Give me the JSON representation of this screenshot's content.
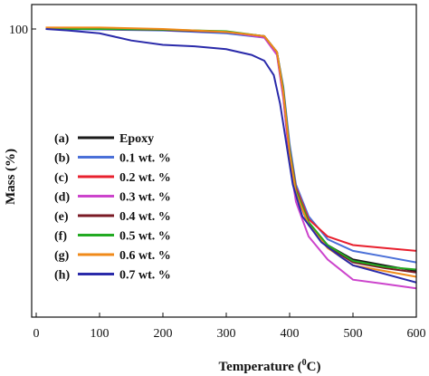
{
  "chart_data": {
    "type": "line",
    "title": "",
    "xlabel": "Temperature (",
    "xlabel_sup": "0",
    "xlabel_suffix": "C)",
    "ylabel": "Mass (%)",
    "xlim": [
      0,
      600
    ],
    "ylim": [
      0,
      105
    ],
    "x_ticks": [
      0,
      100,
      200,
      300,
      400,
      500,
      600
    ],
    "x_tick_labels": [
      "0",
      "100",
      "200",
      "300",
      "400",
      "500",
      "600"
    ],
    "y_ticks": [
      100
    ],
    "y_tick_labels": [
      "100"
    ],
    "grid": false,
    "legend_position": "center-left",
    "series": [
      {
        "letter": "(a)",
        "name": "Epoxy",
        "color": "#1a1a1a",
        "points": [
          [
            15,
            100
          ],
          [
            100,
            100
          ],
          [
            200,
            99.8
          ],
          [
            300,
            99
          ],
          [
            360,
            97.5
          ],
          [
            380,
            92
          ],
          [
            390,
            78
          ],
          [
            400,
            57
          ],
          [
            410,
            43
          ],
          [
            430,
            32
          ],
          [
            460,
            25
          ],
          [
            500,
            20
          ],
          [
            550,
            18
          ],
          [
            600,
            16
          ]
        ]
      },
      {
        "letter": "(b)",
        "name": "0.1 wt. %",
        "color": "#4a70d8",
        "points": [
          [
            15,
            100
          ],
          [
            100,
            99.8
          ],
          [
            200,
            99.5
          ],
          [
            300,
            98.5
          ],
          [
            360,
            97
          ],
          [
            380,
            92
          ],
          [
            390,
            80
          ],
          [
            400,
            60
          ],
          [
            410,
            46
          ],
          [
            430,
            35
          ],
          [
            460,
            27
          ],
          [
            500,
            23
          ],
          [
            550,
            21
          ],
          [
            600,
            19
          ]
        ]
      },
      {
        "letter": "(c)",
        "name": "0.2 wt. %",
        "color": "#e8202e",
        "points": [
          [
            15,
            100
          ],
          [
            100,
            100
          ],
          [
            200,
            99.8
          ],
          [
            300,
            99
          ],
          [
            360,
            97.5
          ],
          [
            380,
            92
          ],
          [
            390,
            79
          ],
          [
            400,
            58
          ],
          [
            410,
            45
          ],
          [
            430,
            34
          ],
          [
            460,
            28
          ],
          [
            500,
            25
          ],
          [
            550,
            24
          ],
          [
            600,
            23
          ]
        ]
      },
      {
        "letter": "(d)",
        "name": "0.3 wt. %",
        "color": "#cc44cc",
        "points": [
          [
            15,
            100
          ],
          [
            100,
            100
          ],
          [
            200,
            99.7
          ],
          [
            300,
            99
          ],
          [
            360,
            97
          ],
          [
            380,
            91
          ],
          [
            390,
            76
          ],
          [
            400,
            54
          ],
          [
            410,
            40
          ],
          [
            430,
            28
          ],
          [
            460,
            20
          ],
          [
            500,
            13
          ],
          [
            550,
            11.5
          ],
          [
            600,
            10
          ]
        ]
      },
      {
        "letter": "(e)",
        "name": "0.4 wt. %",
        "color": "#7a1a24",
        "points": [
          [
            15,
            100
          ],
          [
            100,
            100
          ],
          [
            200,
            99.7
          ],
          [
            300,
            99
          ],
          [
            360,
            97.5
          ],
          [
            380,
            92
          ],
          [
            390,
            78
          ],
          [
            400,
            57
          ],
          [
            410,
            43
          ],
          [
            430,
            32
          ],
          [
            460,
            24.5
          ],
          [
            500,
            19
          ],
          [
            550,
            17
          ],
          [
            600,
            15.5
          ]
        ]
      },
      {
        "letter": "(f)",
        "name": "0.5 wt. %",
        "color": "#22aa22",
        "points": [
          [
            15,
            100
          ],
          [
            100,
            100
          ],
          [
            200,
            99.8
          ],
          [
            300,
            99.2
          ],
          [
            360,
            97.5
          ],
          [
            380,
            92
          ],
          [
            390,
            79
          ],
          [
            400,
            58
          ],
          [
            410,
            44
          ],
          [
            430,
            33
          ],
          [
            460,
            25
          ],
          [
            500,
            19.5
          ],
          [
            550,
            17.5
          ],
          [
            600,
            16.5
          ]
        ]
      },
      {
        "letter": "(g)",
        "name": "0.6 wt. %",
        "color": "#f08a1a",
        "points": [
          [
            15,
            100.5
          ],
          [
            100,
            100.5
          ],
          [
            200,
            100
          ],
          [
            300,
            99
          ],
          [
            360,
            97.5
          ],
          [
            380,
            92
          ],
          [
            390,
            78
          ],
          [
            400,
            57
          ],
          [
            410,
            43
          ],
          [
            430,
            32
          ],
          [
            460,
            24
          ],
          [
            500,
            18
          ],
          [
            550,
            16
          ],
          [
            600,
            14
          ]
        ]
      },
      {
        "letter": "(h)",
        "name": "0.7 wt. %",
        "color": "#2a2aaa",
        "points": [
          [
            15,
            100
          ],
          [
            50,
            99.5
          ],
          [
            100,
            98.5
          ],
          [
            130,
            97
          ],
          [
            150,
            96
          ],
          [
            200,
            94.5
          ],
          [
            250,
            94
          ],
          [
            300,
            93
          ],
          [
            340,
            91
          ],
          [
            360,
            89
          ],
          [
            375,
            84
          ],
          [
            385,
            74
          ],
          [
            395,
            60
          ],
          [
            405,
            46
          ],
          [
            420,
            35
          ],
          [
            450,
            26
          ],
          [
            480,
            21
          ],
          [
            500,
            18
          ],
          [
            550,
            15
          ],
          [
            600,
            12
          ]
        ]
      }
    ]
  }
}
